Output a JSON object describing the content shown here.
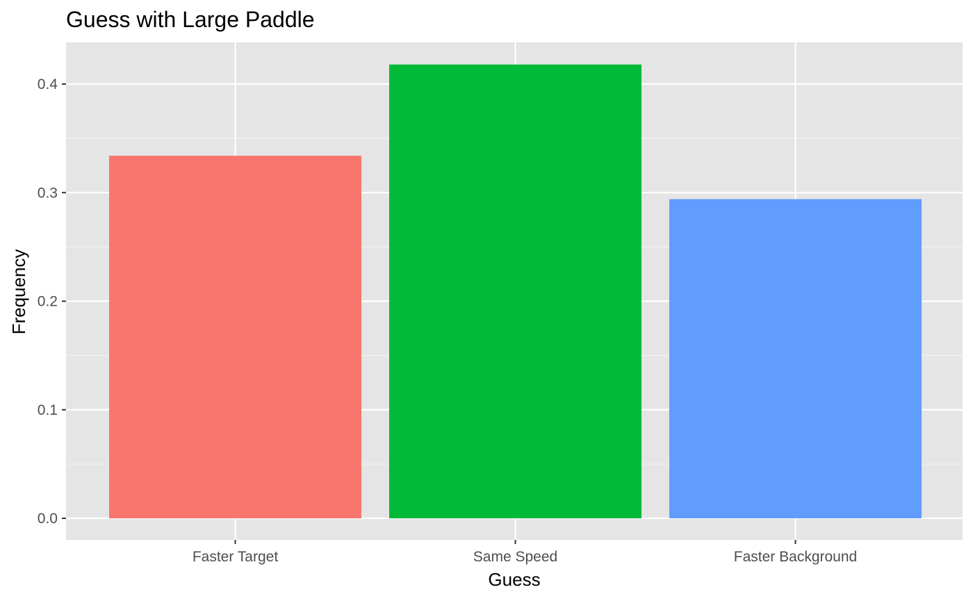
{
  "chart_data": {
    "type": "bar",
    "title": "Guess with Large Paddle",
    "xlabel": "Guess",
    "ylabel": "Frequency",
    "categories": [
      "Faster Target",
      "Same Speed",
      "Faster Background"
    ],
    "values": [
      0.334,
      0.418,
      0.294
    ],
    "colors": [
      "#F8766D",
      "#00BA38",
      "#619CFF"
    ],
    "ylim": [
      0,
      0.44
    ],
    "yticks": [
      0.0,
      0.1,
      0.2,
      0.3,
      0.4
    ],
    "ytick_labels": [
      "0.0",
      "0.1",
      "0.2",
      "0.3",
      "0.4"
    ],
    "grid": true,
    "panel_background": "#E5E5E5",
    "legend": "none"
  }
}
